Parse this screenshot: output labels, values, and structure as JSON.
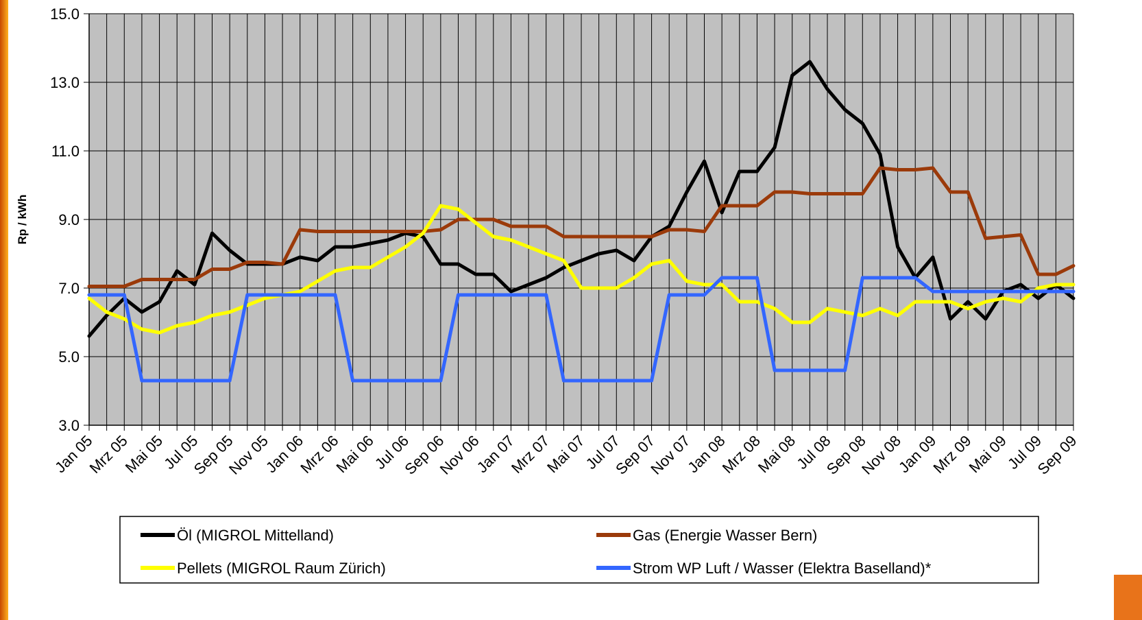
{
  "chart_data": {
    "type": "line",
    "y_label": "Rp / kWh",
    "ylim": [
      3,
      15
    ],
    "yticks": [
      {
        "value": 3,
        "label": "3.0"
      },
      {
        "value": 5,
        "label": "5.0"
      },
      {
        "value": 7,
        "label": "7.0"
      },
      {
        "value": 9,
        "label": "9.0"
      },
      {
        "value": 11,
        "label": "11.0"
      },
      {
        "value": 13,
        "label": "13.0"
      },
      {
        "value": 15,
        "label": "15.0"
      }
    ],
    "grid": true,
    "categories": [
      "Jan 05",
      null,
      "Mrz 05",
      null,
      "Mai 05",
      null,
      "Jul 05",
      null,
      "Sep 05",
      null,
      "Nov 05",
      null,
      "Jan 06",
      null,
      "Mrz 06",
      null,
      "Mai 06",
      null,
      "Jul 06",
      null,
      "Sep 06",
      null,
      "Nov 06",
      null,
      "Jan 07",
      null,
      "Mrz 07",
      null,
      "Mai 07",
      null,
      "Jul 07",
      null,
      "Sep 07",
      null,
      "Nov 07",
      null,
      "Jan 08",
      null,
      "Mrz 08",
      null,
      "Mai 08",
      null,
      "Jul 08",
      null,
      "Sep 08",
      null,
      "Nov 08",
      null,
      "Jan 09",
      null,
      "Mrz 09",
      null,
      "Mai 09",
      null,
      "Jul 09",
      null,
      "Sep 09"
    ],
    "series": [
      {
        "name": "Öl (MIGROL Mittelland)",
        "color": "#000000",
        "values": [
          5.6,
          6.2,
          6.7,
          6.3,
          6.6,
          7.5,
          7.1,
          8.6,
          8.1,
          7.7,
          7.7,
          7.7,
          7.9,
          7.8,
          8.2,
          8.2,
          8.3,
          8.4,
          8.6,
          8.5,
          7.7,
          7.7,
          7.4,
          7.4,
          6.9,
          7.1,
          7.3,
          7.6,
          7.8,
          8.0,
          8.1,
          7.8,
          8.5,
          8.8,
          9.8,
          10.7,
          9.2,
          10.4,
          10.4,
          11.1,
          13.2,
          13.6,
          12.8,
          12.2,
          11.8,
          10.9,
          8.2,
          7.3,
          7.9,
          6.1,
          6.6,
          6.1,
          6.9,
          7.1,
          6.7,
          7.1,
          6.7
        ]
      },
      {
        "name": "Gas (Energie Wasser Bern)",
        "color": "#9b3a0a",
        "values": [
          7.05,
          7.05,
          7.05,
          7.25,
          7.25,
          7.25,
          7.25,
          7.55,
          7.55,
          7.75,
          7.75,
          7.7,
          8.7,
          8.65,
          8.65,
          8.65,
          8.65,
          8.65,
          8.65,
          8.65,
          8.7,
          9.0,
          9.0,
          9.0,
          8.8,
          8.8,
          8.8,
          8.5,
          8.5,
          8.5,
          8.5,
          8.5,
          8.5,
          8.7,
          8.7,
          8.65,
          9.4,
          9.4,
          9.4,
          9.8,
          9.8,
          9.75,
          9.75,
          9.75,
          9.75,
          10.5,
          10.45,
          10.45,
          10.5,
          9.8,
          9.8,
          8.45,
          8.5,
          8.55,
          7.4,
          7.4,
          7.65
        ]
      },
      {
        "name": "Pellets (MIGROL Raum Zürich)",
        "color": "#ffff00",
        "values": [
          6.7,
          6.3,
          6.1,
          5.8,
          5.7,
          5.9,
          6.0,
          6.2,
          6.3,
          6.5,
          6.7,
          6.8,
          6.9,
          7.2,
          7.5,
          7.6,
          7.6,
          7.9,
          8.2,
          8.6,
          9.4,
          9.3,
          8.9,
          8.5,
          8.4,
          8.2,
          8.0,
          7.8,
          7.0,
          7.0,
          7.0,
          7.3,
          7.7,
          7.8,
          7.2,
          7.1,
          7.1,
          6.6,
          6.6,
          6.4,
          6.0,
          6.0,
          6.4,
          6.3,
          6.2,
          6.4,
          6.2,
          6.6,
          6.6,
          6.6,
          6.4,
          6.6,
          6.7,
          6.6,
          7.0,
          7.1,
          7.1
        ]
      },
      {
        "name": "Strom WP Luft / Wasser (Elektra Baselland)*",
        "color": "#3366ff",
        "values": [
          6.8,
          6.8,
          6.8,
          4.3,
          4.3,
          4.3,
          4.3,
          4.3,
          4.3,
          6.8,
          6.8,
          6.8,
          6.8,
          6.8,
          6.8,
          4.3,
          4.3,
          4.3,
          4.3,
          4.3,
          4.3,
          6.8,
          6.8,
          6.8,
          6.8,
          6.8,
          6.8,
          4.3,
          4.3,
          4.3,
          4.3,
          4.3,
          4.3,
          6.8,
          6.8,
          6.8,
          7.3,
          7.3,
          7.3,
          4.6,
          4.6,
          4.6,
          4.6,
          4.6,
          7.3,
          7.3,
          7.3,
          7.3,
          6.9,
          6.9,
          6.9,
          6.9,
          6.9,
          6.9,
          6.9,
          6.9,
          6.9
        ]
      }
    ]
  }
}
